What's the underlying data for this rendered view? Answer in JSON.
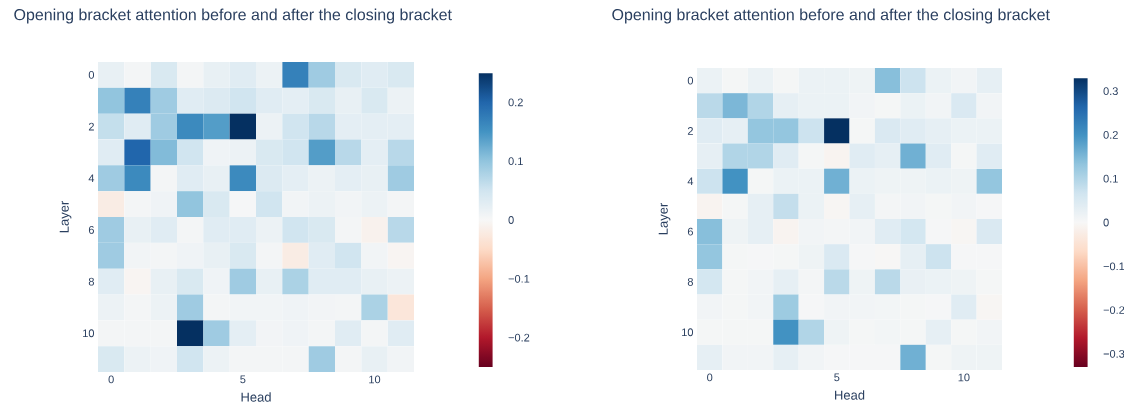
{
  "chart_data": [
    {
      "type": "heatmap",
      "title": "Opening bracket attention before and after the closing bracket",
      "xlabel": "Head",
      "ylabel": "Layer",
      "categories": [
        "0",
        null,
        null,
        null,
        null,
        "5",
        null,
        null,
        null,
        null,
        "10",
        null
      ],
      "y_categories": [
        "0",
        null,
        "2",
        null,
        "4",
        null,
        "6",
        null,
        "8",
        null,
        "10",
        null
      ],
      "cells": [
        [
          0.02,
          0.005,
          0.04,
          0.005,
          0.02,
          0.03,
          0.015,
          0.17,
          0.09,
          0.04,
          0.03,
          0.04
        ],
        [
          0.1,
          0.17,
          0.09,
          0.03,
          0.035,
          0.05,
          0.03,
          0.025,
          0.04,
          0.02,
          0.04,
          0.015
        ],
        [
          0.06,
          0.03,
          0.09,
          0.16,
          0.14,
          0.25,
          0.015,
          0.05,
          0.07,
          0.025,
          0.025,
          0.025
        ],
        [
          0.03,
          0.2,
          0.11,
          0.05,
          0.01,
          0.015,
          0.04,
          0.05,
          0.14,
          0.07,
          0.025,
          0.07
        ],
        [
          0.09,
          0.16,
          0.005,
          0.03,
          0.02,
          0.16,
          0.035,
          0.025,
          0.015,
          0.025,
          0.02,
          0.09
        ],
        [
          -0.02,
          0.005,
          0.01,
          0.1,
          0.04,
          0.003,
          0.05,
          0.008,
          0.015,
          0.008,
          0.015,
          0.005
        ],
        [
          0.09,
          0.02,
          0.03,
          0.005,
          0.03,
          0.03,
          0.015,
          0.05,
          0.04,
          0.005,
          -0.01,
          0.07
        ],
        [
          0.09,
          0.008,
          0.005,
          0.01,
          0.02,
          0.04,
          0.005,
          -0.02,
          0.03,
          0.05,
          0.008,
          -0.005
        ],
        [
          0.03,
          -0.005,
          0.02,
          0.04,
          0.01,
          0.09,
          0.02,
          0.08,
          0.03,
          0.03,
          0.02,
          0.015
        ],
        [
          0.015,
          0.005,
          0.015,
          0.09,
          0.005,
          0.008,
          0.008,
          0.01,
          0.007,
          0.005,
          0.08,
          -0.03
        ],
        [
          0.005,
          0.005,
          0.005,
          0.25,
          0.09,
          0.025,
          0.007,
          0.01,
          0.005,
          0.03,
          0.005,
          0.03
        ],
        [
          0.04,
          0.015,
          0.01,
          0.05,
          0.015,
          0.005,
          0.005,
          0.005,
          0.09,
          0.005,
          0.02,
          0.008
        ]
      ],
      "clim": [
        -0.25,
        0.25
      ],
      "cticks": [
        {
          "value": -0.2,
          "label": "−0.2"
        },
        {
          "value": -0.1,
          "label": "−0.1"
        },
        0,
        0.1,
        0.2
      ]
    },
    {
      "type": "heatmap",
      "title": "Opening bracket attention before and after the closing bracket",
      "xlabel": "Head",
      "ylabel": "Layer",
      "categories": [
        "0",
        null,
        null,
        null,
        null,
        "5",
        null,
        null,
        null,
        null,
        "10",
        null
      ],
      "y_categories": [
        "0",
        null,
        "2",
        null,
        "4",
        null,
        "6",
        null,
        "8",
        null,
        "10",
        null
      ],
      "cells": [
        [
          0.02,
          0.005,
          0.02,
          0.005,
          0.02,
          0.02,
          0.015,
          0.14,
          0.07,
          0.02,
          0.01,
          0.03
        ],
        [
          0.09,
          0.15,
          0.1,
          0.03,
          0.02,
          0.02,
          0.01,
          0.005,
          0.02,
          0.01,
          0.05,
          0.01
        ],
        [
          0.04,
          0.03,
          0.13,
          0.13,
          0.07,
          0.33,
          0.005,
          0.05,
          0.04,
          0.03,
          0.02,
          0.02
        ],
        [
          0.03,
          0.1,
          0.1,
          0.04,
          0.005,
          -0.01,
          0.04,
          0.03,
          0.16,
          0.04,
          0.005,
          0.04
        ],
        [
          0.07,
          0.2,
          0.005,
          0.02,
          0.02,
          0.16,
          0.02,
          0.015,
          0.015,
          0.02,
          0.015,
          0.13
        ],
        [
          -0.01,
          0.005,
          0.03,
          0.08,
          0.02,
          -0.005,
          0.03,
          0.007,
          0.01,
          0.005,
          0.01,
          0.003
        ],
        [
          0.14,
          0.015,
          0.03,
          -0.01,
          0.01,
          0.007,
          0.01,
          0.04,
          0.06,
          0.004,
          -0.005,
          0.05
        ],
        [
          0.13,
          0.005,
          0.003,
          0.005,
          0.015,
          0.05,
          0.003,
          -0.003,
          0.03,
          0.07,
          0.004,
          0.004
        ],
        [
          0.06,
          0.005,
          0.01,
          0.03,
          0.007,
          0.09,
          0.015,
          0.09,
          0.025,
          0.02,
          0.015,
          0.005
        ],
        [
          0.01,
          0.005,
          0.01,
          0.12,
          0.003,
          0.01,
          0.01,
          0.008,
          0.005,
          0.004,
          0.04,
          -0.005
        ],
        [
          0.005,
          0.005,
          0.005,
          0.2,
          0.1,
          0.015,
          0.005,
          0.008,
          0.005,
          0.03,
          0.005,
          0.01
        ],
        [
          0.03,
          0.01,
          0.01,
          0.03,
          0.01,
          0.004,
          0.004,
          0.004,
          0.16,
          0.005,
          0.015,
          0.015
        ]
      ],
      "clim": [
        -0.33,
        0.33
      ],
      "cticks": [
        {
          "value": -0.3,
          "label": "−0.3"
        },
        {
          "value": -0.2,
          "label": "−0.2"
        },
        {
          "value": -0.1,
          "label": "−0.1"
        },
        0,
        0.1,
        0.2,
        0.3
      ]
    }
  ]
}
